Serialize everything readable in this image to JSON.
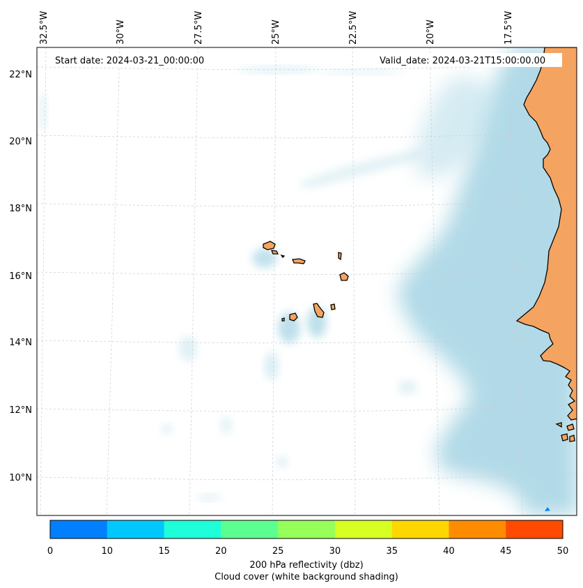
{
  "map": {
    "start_date": "Start date: 2024-03-21_00:00:00",
    "valid_date": "Valid_date: 2024-03-21T15:00:00.00",
    "lon_labels": [
      "32.5°W",
      "30°W",
      "27.5°W",
      "25°W",
      "22.5°W",
      "20°W",
      "17.5°W"
    ],
    "lat_labels": [
      "22°N",
      "20°N",
      "18°N",
      "16°N",
      "14°N",
      "12°N",
      "10°N"
    ]
  },
  "colorbar": {
    "ticks": [
      "0",
      "10",
      "15",
      "20",
      "25",
      "30",
      "35",
      "40",
      "45",
      "50"
    ],
    "colors": [
      "#0080ff",
      "#00c8ff",
      "#1effd9",
      "#5cff8f",
      "#97ff5a",
      "#d8ff22",
      "#ffd700",
      "#ff8c00",
      "#ff4b00"
    ],
    "label": "200 hPa reflectivity (dbz)",
    "sublabel": "Cloud cover (white background shading)"
  },
  "colors": {
    "land": "#f4a460",
    "cloud": "#add8e6",
    "ocean": "#ffffff"
  }
}
